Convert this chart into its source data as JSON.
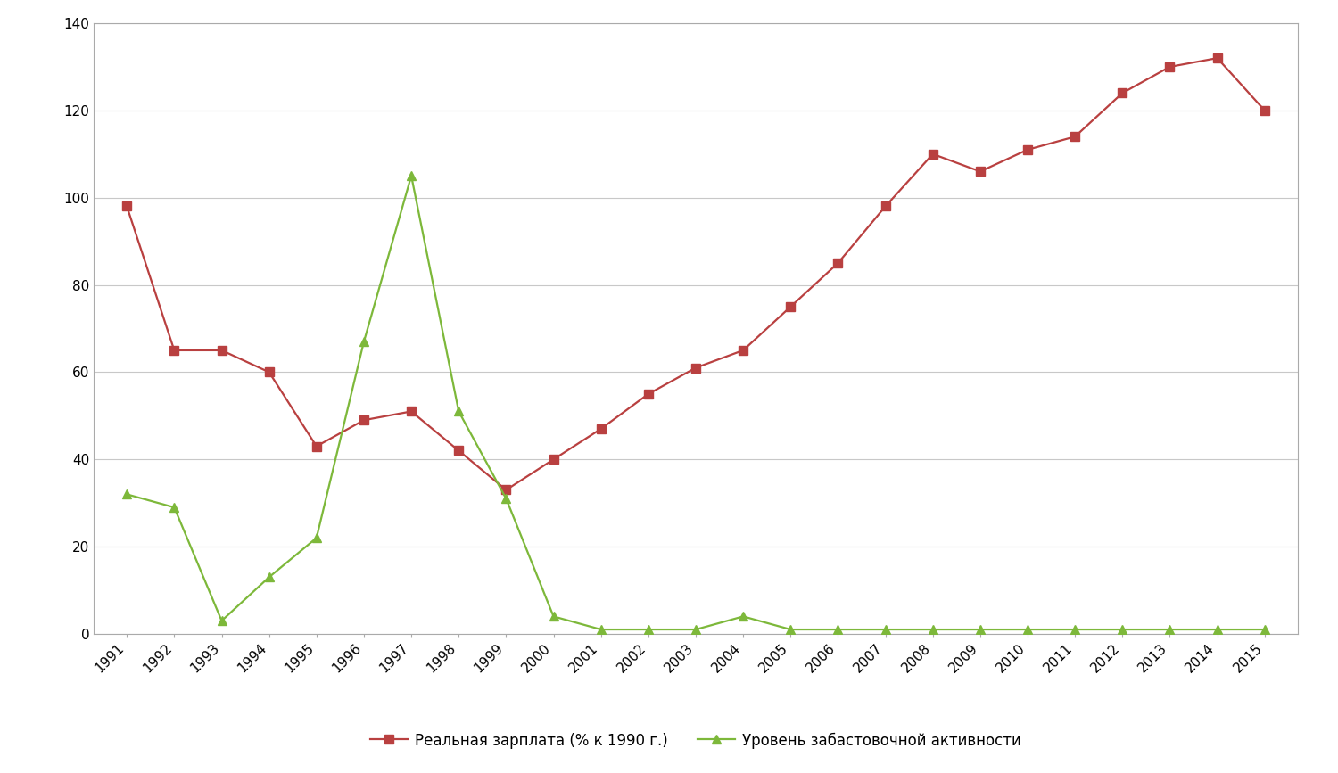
{
  "years": [
    1991,
    1992,
    1993,
    1994,
    1995,
    1996,
    1997,
    1998,
    1999,
    2000,
    2001,
    2002,
    2003,
    2004,
    2005,
    2006,
    2007,
    2008,
    2009,
    2010,
    2011,
    2012,
    2013,
    2014,
    2015
  ],
  "real_wage": [
    98,
    65,
    65,
    60,
    43,
    49,
    51,
    42,
    33,
    40,
    47,
    55,
    61,
    65,
    75,
    85,
    98,
    110,
    106,
    111,
    114,
    124,
    130,
    132,
    120
  ],
  "strike_activity": [
    32,
    29,
    3,
    13,
    22,
    67,
    105,
    51,
    31,
    4,
    1,
    1,
    1,
    4,
    1,
    1,
    1,
    1,
    1,
    1,
    1,
    1,
    1,
    1,
    1
  ],
  "wage_color": "#b94040",
  "strike_color": "#7db83a",
  "wage_label": "Реальная зарплата (% к 1990 г.)",
  "strike_label": "Уровень забастовочной активности",
  "ylim_min": 0,
  "ylim_max": 140,
  "yticks": [
    0,
    20,
    40,
    60,
    80,
    100,
    120,
    140
  ],
  "background_color": "#ffffff",
  "grid_color": "#c8c8c8",
  "marker_size": 7,
  "line_width": 1.6,
  "tick_fontsize": 11,
  "legend_fontsize": 12
}
